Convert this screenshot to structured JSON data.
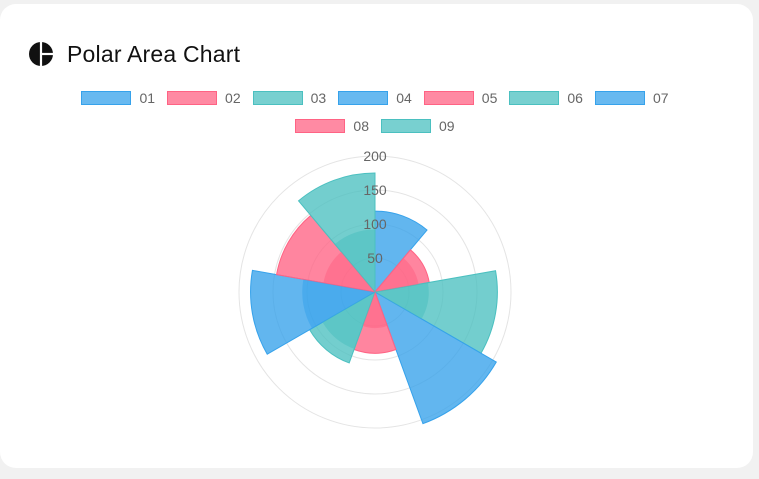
{
  "header": {
    "title": "Polar Area Chart",
    "icon": "pie-chart-icon"
  },
  "colors": {
    "blue": "#36a2eb",
    "red": "#ff6384",
    "teal": "#4bc0c0"
  },
  "legend": [
    {
      "label": "01",
      "color": "#36a2eb"
    },
    {
      "label": "02",
      "color": "#ff6384"
    },
    {
      "label": "03",
      "color": "#4bc0c0"
    },
    {
      "label": "04",
      "color": "#36a2eb"
    },
    {
      "label": "05",
      "color": "#ff6384"
    },
    {
      "label": "06",
      "color": "#4bc0c0"
    },
    {
      "label": "07",
      "color": "#36a2eb"
    },
    {
      "label": "08",
      "color": "#ff6384"
    },
    {
      "label": "09",
      "color": "#4bc0c0"
    }
  ],
  "chart_data": {
    "type": "polarArea",
    "categories": [
      "01",
      "02",
      "03",
      "04",
      "05",
      "06",
      "07",
      "08",
      "09"
    ],
    "values": [
      119,
      81,
      180,
      206,
      90,
      111,
      183,
      147,
      175
    ],
    "inner_values": [
      null,
      65,
      79,
      null,
      53,
      89,
      107,
      77,
      92
    ],
    "colors": [
      "#36a2eb",
      "#ff6384",
      "#4bc0c0",
      "#36a2eb",
      "#ff6384",
      "#4bc0c0",
      "#36a2eb",
      "#ff6384",
      "#4bc0c0"
    ],
    "r_ticks": [
      "50",
      "100",
      "150",
      "200"
    ],
    "r_max": 200,
    "grid": true,
    "legend_position": "top"
  }
}
